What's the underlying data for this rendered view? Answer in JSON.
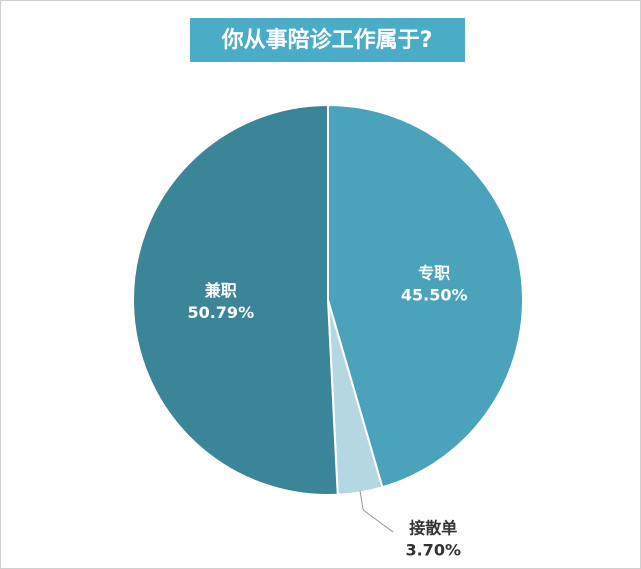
{
  "chart_data": {
    "type": "pie",
    "title": "你从事陪诊工作属于?",
    "categories": [
      "专职",
      "接散单",
      "兼职"
    ],
    "values": [
      45.5,
      3.7,
      50.79
    ],
    "value_labels": [
      "45.50%",
      "3.70%",
      "50.79%"
    ],
    "colors": [
      "#4aa3bb",
      "#b5d7e1",
      "#3a8598"
    ]
  }
}
